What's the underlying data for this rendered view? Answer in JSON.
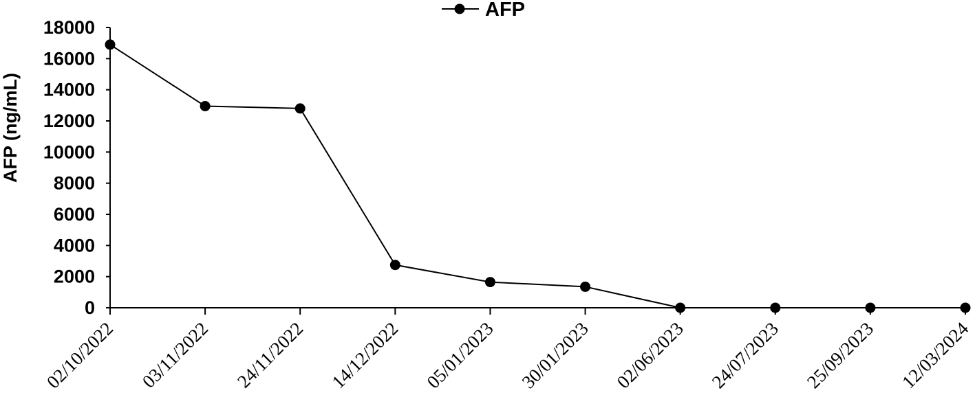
{
  "chart_data": {
    "type": "line",
    "title": "",
    "xlabel": "",
    "ylabel": "AFP (ng/mL)",
    "ylim": [
      0,
      18000
    ],
    "yticks": [
      0,
      2000,
      4000,
      6000,
      8000,
      10000,
      12000,
      14000,
      16000,
      18000
    ],
    "categories": [
      "02/10/2022",
      "03/11/2022",
      "24/11/2022",
      "14/12/2022",
      "05/01/2023",
      "30/01/2023",
      "02/06/2023",
      "24/07/2023",
      "25/09/2023",
      "12/03/2024"
    ],
    "series": [
      {
        "name": "AFP",
        "color": "#000000",
        "marker": "circle",
        "values": [
          16900,
          12950,
          12800,
          2750,
          1650,
          1350,
          0,
          0,
          0,
          0
        ]
      }
    ],
    "legend": "top-center",
    "grid": false
  }
}
